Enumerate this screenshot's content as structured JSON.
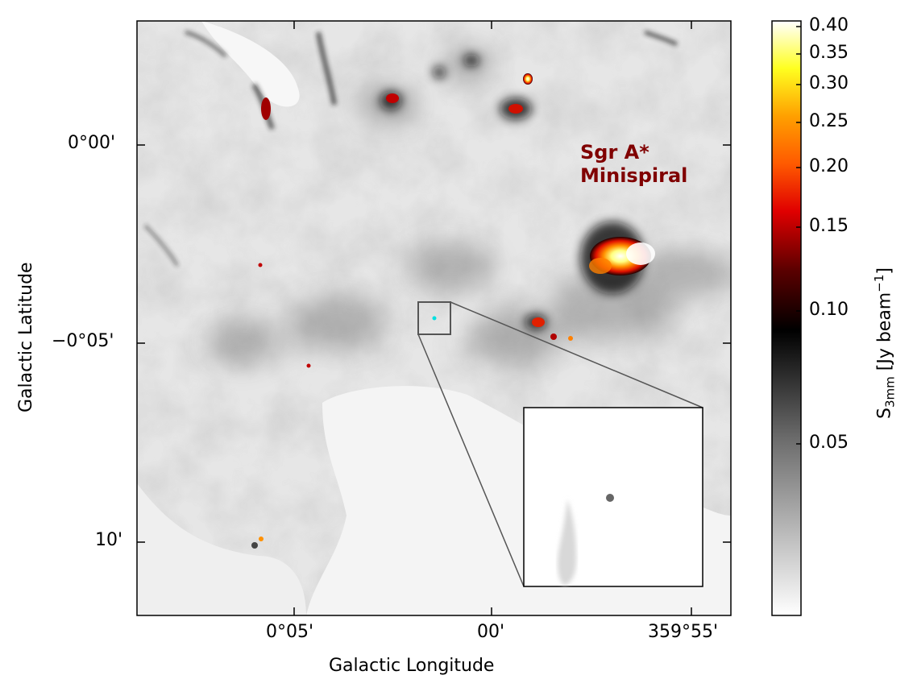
{
  "figure": {
    "xlabel": "Galactic Longitude",
    "ylabel": "Galactic Latitude",
    "x_ticks": [
      "0°05'",
      "00'",
      "359°55'"
    ],
    "y_ticks": [
      "0°00'",
      "−0°05'",
      "10'"
    ],
    "annotation": {
      "line1": "Sgr A*",
      "line2": "Minispiral",
      "color": "#800000"
    }
  },
  "colorbar": {
    "label_main": "S",
    "label_sub": "3mm",
    "label_unit_prefix": " [Jy beam",
    "label_sup": "−1",
    "label_unit_suffix": "]",
    "ticks": [
      "0.40",
      "0.35",
      "0.30",
      "0.25",
      "0.20",
      "0.15",
      "0.10",
      "0.05"
    ],
    "colormap": "gray-to-hot"
  },
  "inset": {
    "description_icon": "zoom-inset"
  }
}
